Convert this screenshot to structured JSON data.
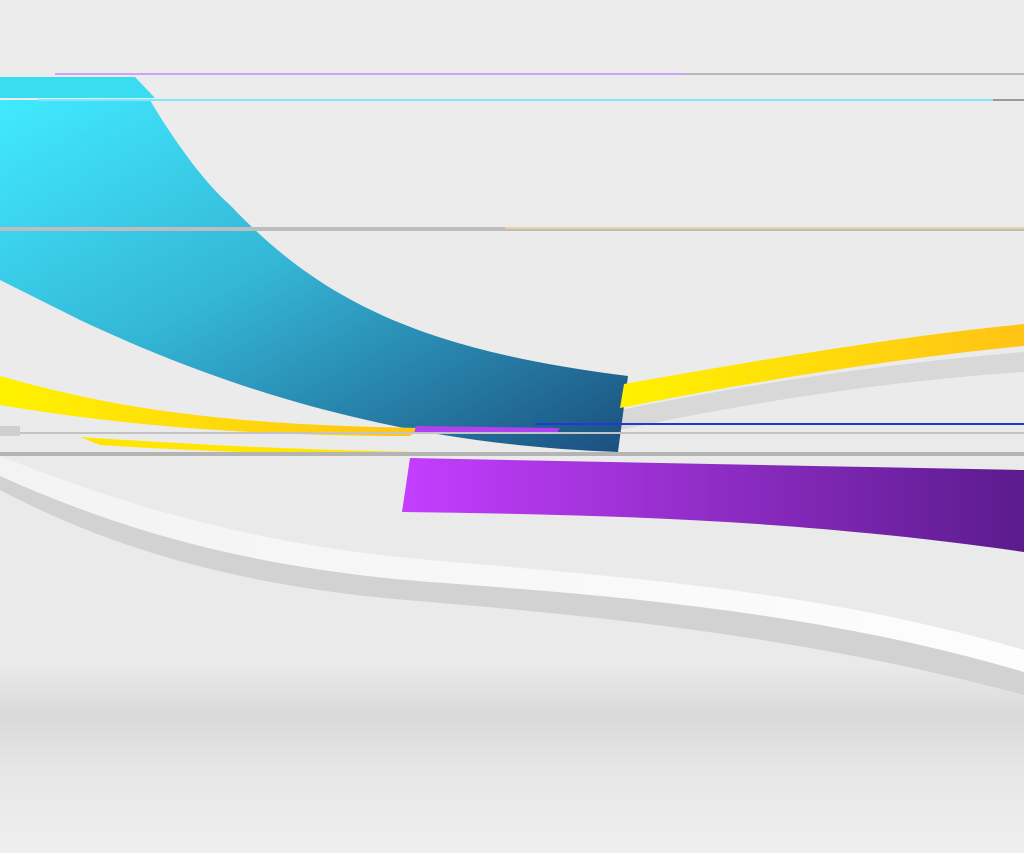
{
  "scene": {
    "description_kind": "abstract-wallpaper",
    "background": "#e9e9e9",
    "floor_shade": "#dadada",
    "ribbons": {
      "cyan": {
        "start": "#3fe8ff",
        "end": "#1b4f7e"
      },
      "yellow": {
        "start": "#fff000",
        "end": "#ffc20e"
      },
      "purple": {
        "start": "#c83dff",
        "end": "#5a1a8c"
      },
      "white_wave": "#f7f7f7",
      "shadow": "#cfcfcf"
    },
    "glitch_lines": {
      "grey": "#b4b4b4",
      "lavender": "#c9a4ff",
      "light_cyan": "#7fe6ff",
      "blue": "#1f3bd6",
      "peach": "#ffd9a8"
    }
  }
}
